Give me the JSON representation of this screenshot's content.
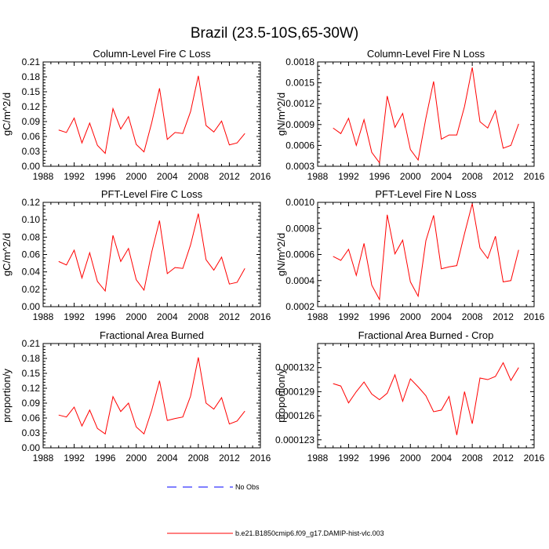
{
  "figure": {
    "title": "Brazil (23.5-10S,65-30W)"
  },
  "legend": {
    "entries": [
      {
        "label": "No Obs",
        "color": "#0000ff",
        "dash": true
      },
      {
        "label": "b.e21.B1850cmip6.f09_g17.DAMIP-hist-vlc.003",
        "color": "#ff0000",
        "dash": false
      }
    ]
  },
  "chart_data": [
    {
      "type": "line",
      "title": "Column-Level Fire C Loss",
      "ylabel": "gC/m^2/d",
      "xlim": [
        1988,
        2016
      ],
      "ylim": [
        0,
        0.21
      ],
      "xticks": [
        "1988",
        "1992",
        "1996",
        "2000",
        "2004",
        "2008",
        "2012",
        "2016"
      ],
      "yticks": [
        "0.00",
        "0.03",
        "0.06",
        "0.09",
        "0.12",
        "0.15",
        "0.18",
        "0.21"
      ],
      "series": [
        {
          "color": "#ff0000",
          "x": [
            1990,
            1991,
            1992,
            1993,
            1994,
            1995,
            1996,
            1997,
            1998,
            1999,
            2000,
            2001,
            2002,
            2003,
            2004,
            2005,
            2006,
            2007,
            2008,
            2009,
            2010,
            2011,
            2012,
            2013,
            2014
          ],
          "values": [
            0.073,
            0.068,
            0.097,
            0.047,
            0.087,
            0.042,
            0.026,
            0.116,
            0.075,
            0.1,
            0.044,
            0.029,
            0.088,
            0.157,
            0.054,
            0.068,
            0.066,
            0.11,
            0.182,
            0.082,
            0.069,
            0.091,
            0.043,
            0.047,
            0.066
          ]
        }
      ]
    },
    {
      "type": "line",
      "title": "Column-Level Fire N Loss",
      "ylabel": "gN/m^2/d",
      "xlim": [
        1988,
        2016
      ],
      "ylim": [
        0.0003,
        0.0018
      ],
      "xticks": [
        "1988",
        "1992",
        "1996",
        "2000",
        "2004",
        "2008",
        "2012",
        "2016"
      ],
      "yticks": [
        "0.0003",
        "0.0006",
        "0.0009",
        "0.0012",
        "0.0015",
        "0.0018"
      ],
      "series": [
        {
          "color": "#ff0000",
          "x": [
            1990,
            1991,
            1992,
            1993,
            1994,
            1995,
            1996,
            1997,
            1998,
            1999,
            2000,
            2001,
            2002,
            2003,
            2004,
            2005,
            2006,
            2007,
            2008,
            2009,
            2010,
            2011,
            2012,
            2013,
            2014
          ],
          "values": [
            0.00085,
            0.00077,
            0.00099,
            0.0006,
            0.00097,
            0.0005,
            0.00035,
            0.00131,
            0.00086,
            0.00106,
            0.00054,
            0.00039,
            0.00099,
            0.00152,
            0.00069,
            0.00075,
            0.00075,
            0.00116,
            0.00172,
            0.00094,
            0.00085,
            0.0011,
            0.00056,
            0.0006,
            0.00091
          ]
        }
      ]
    },
    {
      "type": "line",
      "title": "PFT-Level Fire C Loss",
      "ylabel": "gC/m^2/d",
      "xlim": [
        1988,
        2016
      ],
      "ylim": [
        0,
        0.12
      ],
      "xticks": [
        "1988",
        "1992",
        "1996",
        "2000",
        "2004",
        "2008",
        "2012",
        "2016"
      ],
      "yticks": [
        "0.00",
        "0.02",
        "0.04",
        "0.06",
        "0.08",
        "0.10",
        "0.12"
      ],
      "series": [
        {
          "color": "#ff0000",
          "x": [
            1990,
            1991,
            1992,
            1993,
            1994,
            1995,
            1996,
            1997,
            1998,
            1999,
            2000,
            2001,
            2002,
            2003,
            2004,
            2005,
            2006,
            2007,
            2008,
            2009,
            2010,
            2011,
            2012,
            2013,
            2014
          ],
          "values": [
            0.052,
            0.048,
            0.065,
            0.033,
            0.062,
            0.029,
            0.018,
            0.082,
            0.052,
            0.067,
            0.031,
            0.019,
            0.063,
            0.099,
            0.038,
            0.045,
            0.044,
            0.071,
            0.107,
            0.054,
            0.042,
            0.057,
            0.026,
            0.028,
            0.044
          ]
        }
      ]
    },
    {
      "type": "line",
      "title": "PFT-Level Fire N Loss",
      "ylabel": "gN/m^2/d",
      "xlim": [
        1988,
        2016
      ],
      "ylim": [
        0.0002,
        0.001
      ],
      "xticks": [
        "1988",
        "1992",
        "1996",
        "2000",
        "2004",
        "2008",
        "2012",
        "2016"
      ],
      "yticks": [
        "0.0002",
        "0.0004",
        "0.0006",
        "0.0008",
        "0.0010"
      ],
      "series": [
        {
          "color": "#ff0000",
          "x": [
            1990,
            1991,
            1992,
            1993,
            1994,
            1995,
            1996,
            1997,
            1998,
            1999,
            2000,
            2001,
            2002,
            2003,
            2004,
            2005,
            2006,
            2007,
            2008,
            2009,
            2010,
            2011,
            2012,
            2013,
            2014
          ],
          "values": [
            0.000585,
            0.000555,
            0.00064,
            0.00044,
            0.000685,
            0.000365,
            0.000255,
            0.000905,
            0.000605,
            0.00071,
            0.00039,
            0.00028,
            0.000705,
            0.0009,
            0.00049,
            0.000505,
            0.000515,
            0.00076,
            0.00099,
            0.00065,
            0.00057,
            0.00074,
            0.00039,
            0.0004,
            0.000635
          ]
        }
      ]
    },
    {
      "type": "line",
      "title": "Fractional Area Burned",
      "ylabel": "proportion/y",
      "xlim": [
        1988,
        2016
      ],
      "ylim": [
        0,
        0.21
      ],
      "xticks": [
        "1988",
        "1992",
        "1996",
        "2000",
        "2004",
        "2008",
        "2012",
        "2016"
      ],
      "yticks": [
        "0.00",
        "0.03",
        "0.06",
        "0.09",
        "0.12",
        "0.15",
        "0.18",
        "0.21"
      ],
      "series": [
        {
          "color": "#ff0000",
          "x": [
            1990,
            1991,
            1992,
            1993,
            1994,
            1995,
            1996,
            1997,
            1998,
            1999,
            2000,
            2001,
            2002,
            2003,
            2004,
            2005,
            2006,
            2007,
            2008,
            2009,
            2010,
            2011,
            2012,
            2013,
            2014
          ],
          "values": [
            0.066,
            0.062,
            0.082,
            0.044,
            0.076,
            0.039,
            0.028,
            0.103,
            0.073,
            0.09,
            0.042,
            0.028,
            0.076,
            0.135,
            0.055,
            0.059,
            0.062,
            0.104,
            0.182,
            0.09,
            0.078,
            0.101,
            0.048,
            0.054,
            0.074
          ]
        }
      ]
    },
    {
      "type": "line",
      "title": "Fractional Area Burned - Crop",
      "ylabel": "proportion/y",
      "xlim": [
        1988,
        2016
      ],
      "ylim": [
        0.000122,
        0.000135
      ],
      "xticks": [
        "1988",
        "1992",
        "1996",
        "2000",
        "2004",
        "2008",
        "2012",
        "2016"
      ],
      "yticks": [
        "0.000123",
        "0.000126",
        "0.000129",
        "0.000132"
      ],
      "series": [
        {
          "color": "#ff0000",
          "x": [
            1990,
            1991,
            1992,
            1993,
            1994,
            1995,
            1996,
            1997,
            1998,
            1999,
            2000,
            2001,
            2002,
            2003,
            2004,
            2005,
            2006,
            2007,
            2008,
            2009,
            2010,
            2011,
            2012,
            2013,
            2014
          ],
          "values": [
            0.00013,
            0.0001297,
            0.0001276,
            0.000129,
            0.0001302,
            0.0001287,
            0.000128,
            0.0001288,
            0.0001311,
            0.0001278,
            0.0001306,
            0.0001296,
            0.0001285,
            0.0001265,
            0.0001267,
            0.0001284,
            0.0001236,
            0.000129,
            0.000125,
            0.0001307,
            0.0001305,
            0.0001309,
            0.0001326,
            0.0001304,
            0.000132
          ]
        }
      ]
    }
  ]
}
